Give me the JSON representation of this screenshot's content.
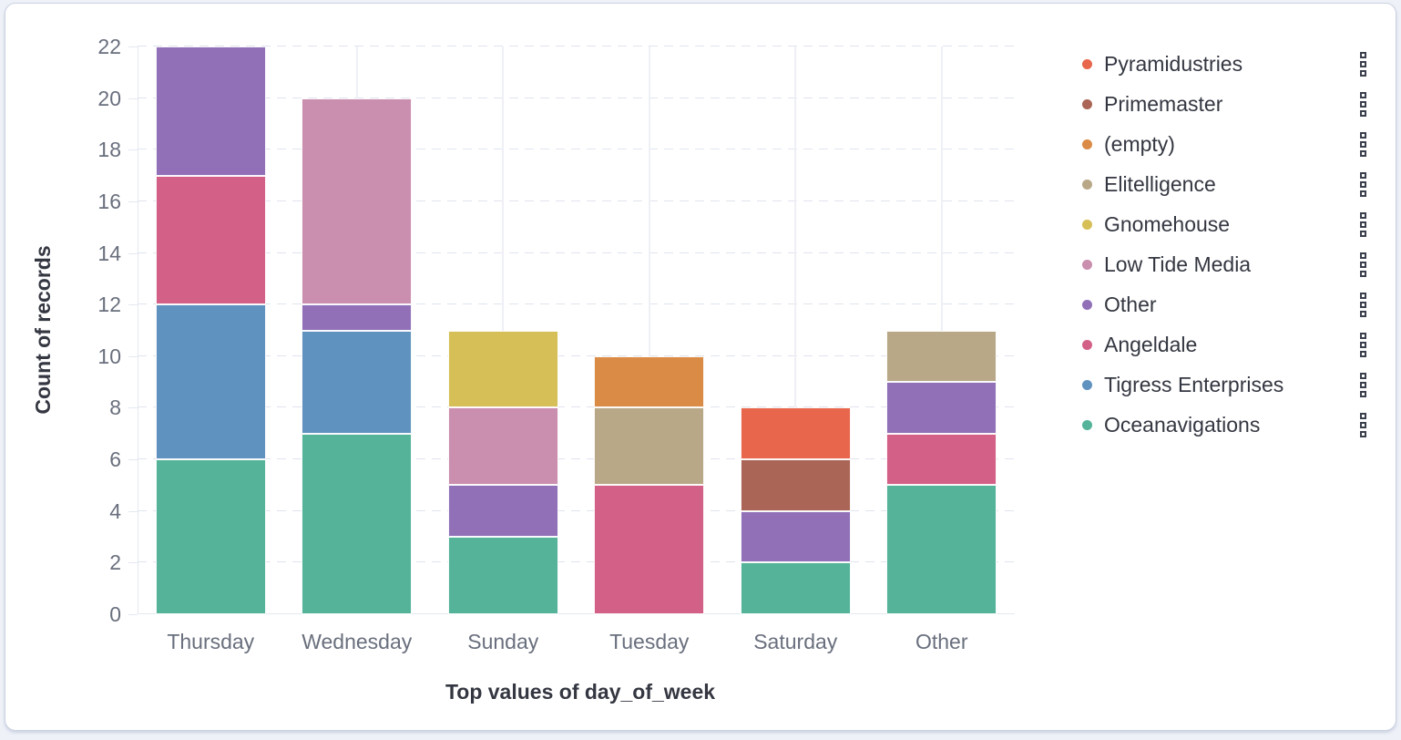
{
  "panel": {
    "background": "#ffffff",
    "border_color": "#cbd3e2"
  },
  "icons": {
    "legend_action": "boxes-vertical-icon"
  },
  "chart_data": {
    "type": "bar",
    "stacked": true,
    "orientation": "vertical",
    "title": "",
    "xlabel": "Top values of day_of_week",
    "ylabel": "Count of records",
    "categories": [
      "Thursday",
      "Wednesday",
      "Sunday",
      "Tuesday",
      "Saturday",
      "Other"
    ],
    "series": [
      {
        "name": "Oceanavigations",
        "color": "#54B399",
        "values": [
          6,
          7,
          3,
          0,
          2,
          5
        ]
      },
      {
        "name": "Tigress Enterprises",
        "color": "#6092C0",
        "values": [
          6,
          4,
          0,
          0,
          0,
          0
        ]
      },
      {
        "name": "Angeldale",
        "color": "#D36086",
        "values": [
          5,
          0,
          0,
          5,
          0,
          2
        ]
      },
      {
        "name": "Other",
        "color": "#9170B8",
        "values": [
          5,
          1,
          2,
          0,
          2,
          2
        ]
      },
      {
        "name": "Low Tide Media",
        "color": "#CA8EAE",
        "values": [
          0,
          8,
          3,
          0,
          0,
          0
        ]
      },
      {
        "name": "Gnomehouse",
        "color": "#D6BF57",
        "values": [
          0,
          0,
          3,
          0,
          0,
          0
        ]
      },
      {
        "name": "Elitelligence",
        "color": "#B9A888",
        "values": [
          0,
          0,
          0,
          3,
          0,
          2
        ]
      },
      {
        "name": "(empty)",
        "color": "#DA8B45",
        "values": [
          0,
          0,
          0,
          2,
          0,
          0
        ]
      },
      {
        "name": "Primemaster",
        "color": "#AA6556",
        "values": [
          0,
          0,
          0,
          0,
          2,
          0
        ]
      },
      {
        "name": "Pyramidustries",
        "color": "#E7664C",
        "values": [
          0,
          0,
          0,
          0,
          2,
          0
        ]
      }
    ],
    "category_totals": [
      22,
      20,
      11,
      10,
      8,
      11
    ],
    "ylim": [
      0,
      22
    ],
    "yticks": [
      0,
      2,
      4,
      6,
      8,
      10,
      12,
      14,
      16,
      18,
      20,
      22
    ],
    "grid": {
      "horizontal": "dashed",
      "vertical": "solid"
    },
    "legend": {
      "position": "right",
      "items": [
        {
          "label": "Pyramidustries",
          "color": "#E7664C"
        },
        {
          "label": "Primemaster",
          "color": "#AA6556"
        },
        {
          "label": "(empty)",
          "color": "#DA8B45"
        },
        {
          "label": "Elitelligence",
          "color": "#B9A888"
        },
        {
          "label": "Gnomehouse",
          "color": "#D6BF57"
        },
        {
          "label": "Low Tide Media",
          "color": "#CA8EAE"
        },
        {
          "label": "Other",
          "color": "#9170B8"
        },
        {
          "label": "Angeldale",
          "color": "#D36086"
        },
        {
          "label": "Tigress Enterprises",
          "color": "#6092C0"
        },
        {
          "label": "Oceanavigations",
          "color": "#54B399"
        }
      ]
    }
  }
}
